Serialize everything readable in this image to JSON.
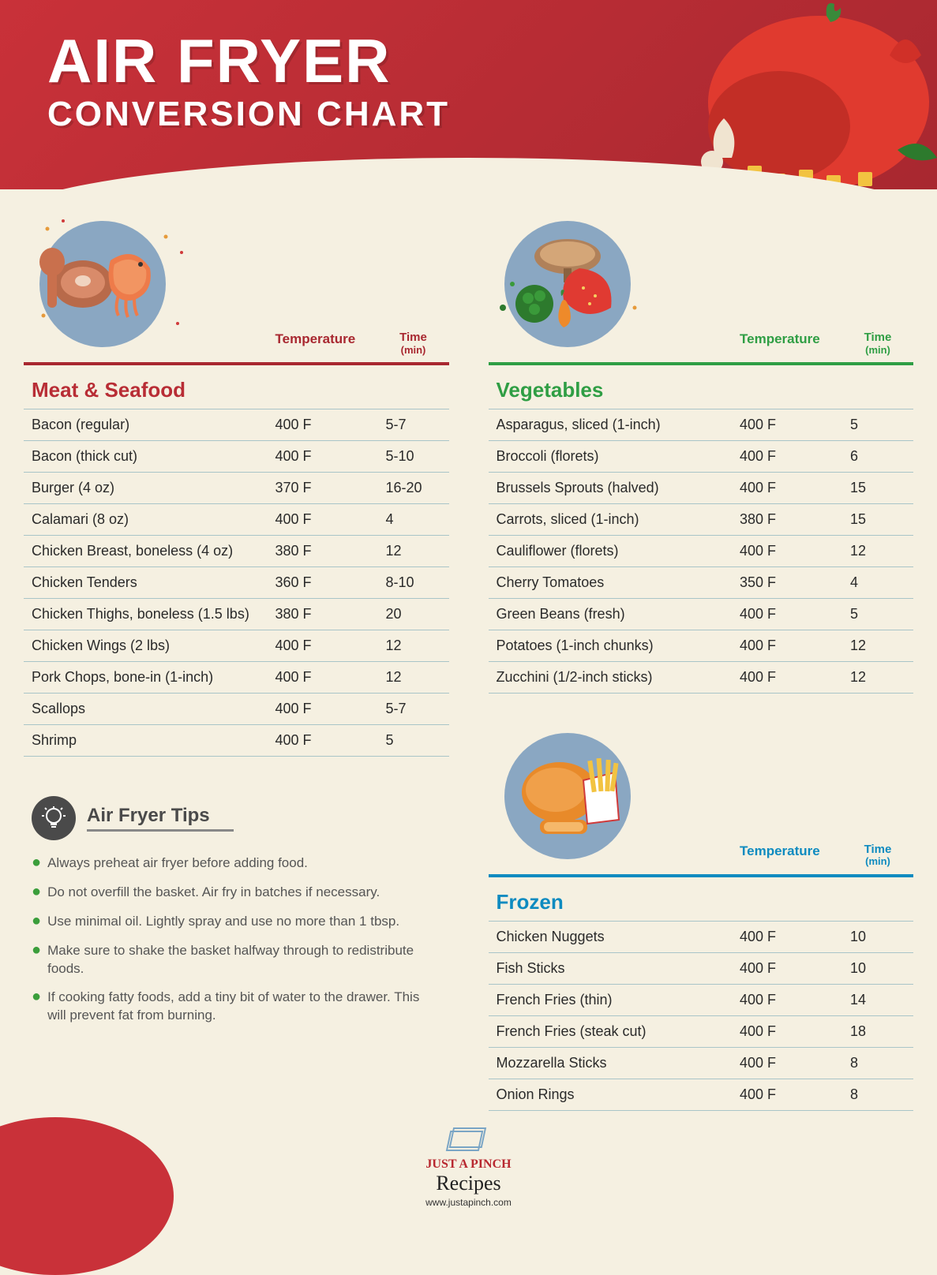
{
  "header": {
    "title_main": "AIR FRYER",
    "title_sub": "CONVERSION CHART"
  },
  "col_headers": {
    "temp": "Temperature",
    "time": "Time",
    "time_unit": "(min)"
  },
  "sections": {
    "meat": {
      "title": "Meat & Seafood",
      "accent_color": "#a82830",
      "illus_bg": "#8aa7c2",
      "rows": [
        {
          "food": "Bacon (regular)",
          "temp": "400 F",
          "time": "5-7"
        },
        {
          "food": "Bacon (thick cut)",
          "temp": "400 F",
          "time": "5-10"
        },
        {
          "food": "Burger (4 oz)",
          "temp": "370 F",
          "time": "16-20"
        },
        {
          "food": "Calamari (8 oz)",
          "temp": "400 F",
          "time": "4"
        },
        {
          "food": "Chicken Breast, boneless (4 oz)",
          "temp": "380 F",
          "time": "12"
        },
        {
          "food": "Chicken Tenders",
          "temp": "360 F",
          "time": "8-10"
        },
        {
          "food": "Chicken Thighs, boneless (1.5 lbs)",
          "temp": "380 F",
          "time": "20"
        },
        {
          "food": "Chicken Wings (2 lbs)",
          "temp": "400 F",
          "time": "12"
        },
        {
          "food": "Pork Chops, bone-in (1-inch)",
          "temp": "400 F",
          "time": "12"
        },
        {
          "food": "Scallops",
          "temp": "400 F",
          "time": "5-7"
        },
        {
          "food": "Shrimp",
          "temp": "400 F",
          "time": "5"
        }
      ]
    },
    "vegetables": {
      "title": "Vegetables",
      "accent_color": "#2f9e44",
      "illus_bg": "#8aa7c2",
      "rows": [
        {
          "food": "Asparagus, sliced (1-inch)",
          "temp": "400 F",
          "time": "5"
        },
        {
          "food": "Broccoli (florets)",
          "temp": "400 F",
          "time": "6"
        },
        {
          "food": "Brussels Sprouts (halved)",
          "temp": "400 F",
          "time": "15"
        },
        {
          "food": "Carrots, sliced (1-inch)",
          "temp": "380 F",
          "time": "15"
        },
        {
          "food": "Cauliflower (florets)",
          "temp": "400 F",
          "time": "12"
        },
        {
          "food": "Cherry Tomatoes",
          "temp": "350 F",
          "time": "4"
        },
        {
          "food": "Green Beans (fresh)",
          "temp": "400 F",
          "time": "5"
        },
        {
          "food": "Potatoes (1-inch chunks)",
          "temp": "400 F",
          "time": "12"
        },
        {
          "food": "Zucchini (1/2-inch sticks)",
          "temp": "400 F",
          "time": "12"
        }
      ]
    },
    "frozen": {
      "title": "Frozen",
      "accent_color": "#0e8bc0",
      "illus_bg": "#8aa7c2",
      "rows": [
        {
          "food": "Chicken Nuggets",
          "temp": "400 F",
          "time": "10"
        },
        {
          "food": "Fish Sticks",
          "temp": "400 F",
          "time": "10"
        },
        {
          "food": "French Fries (thin)",
          "temp": "400 F",
          "time": "14"
        },
        {
          "food": "French Fries (steak cut)",
          "temp": "400 F",
          "time": "18"
        },
        {
          "food": "Mozzarella Sticks",
          "temp": "400 F",
          "time": "8"
        },
        {
          "food": "Onion Rings",
          "temp": "400 F",
          "time": "8"
        }
      ]
    }
  },
  "tips": {
    "title": "Air Fryer Tips",
    "items": [
      "Always preheat air fryer before adding food.",
      "Do not overfill the basket. Air fry in batches if necessary.",
      "Use minimal oil. Lightly spray and use no more than 1 tbsp.",
      "Make sure to shake the basket halfway through to redistribute foods.",
      "If cooking fatty foods, add a tiny bit of water to the drawer. This will prevent fat from burning."
    ]
  },
  "footer": {
    "logo_top": "JUST A PINCH",
    "logo_script": "Recipes",
    "url": "www.justapinch.com"
  }
}
